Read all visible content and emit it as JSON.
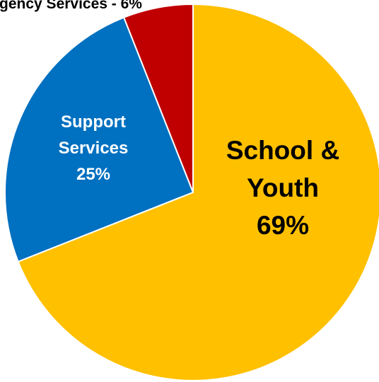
{
  "chart_data": {
    "type": "pie",
    "categories": [
      "Emergency Services",
      "Support Services",
      "School & Youth"
    ],
    "values": [
      6,
      25,
      69
    ],
    "colors": [
      "#c00000",
      "#0070c0",
      "#ffc000"
    ],
    "data_labels": [
      {
        "lines": [
          "gency Services - 6%"
        ],
        "color": "#000000"
      },
      {
        "lines": [
          "Support",
          "Services",
          "25%"
        ],
        "color": "#ffffff"
      },
      {
        "lines": [
          "School &",
          "Youth",
          "69%"
        ],
        "color": "#000000"
      }
    ],
    "start_angle_deg": 0,
    "direction": "counterclockwise"
  }
}
